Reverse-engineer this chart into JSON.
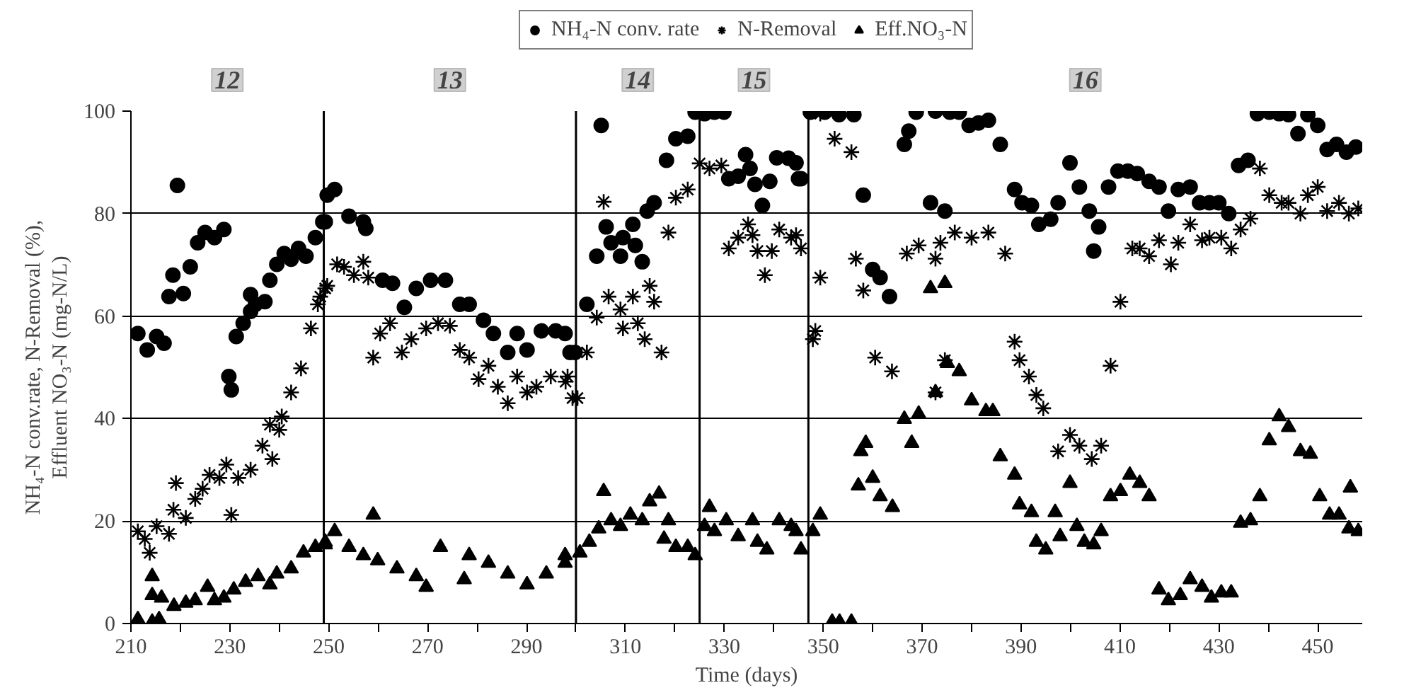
{
  "chart_data": {
    "type": "scatter",
    "xlabel": "Time (days)",
    "ylabel": "NH₄-N conv.rate, N-Removal (%),\nEffluent NO₃-N (mg-N/L)",
    "xlim": [
      210,
      459
    ],
    "ylim": [
      0,
      100
    ],
    "xticks": [
      210,
      {
        "value": 220,
        "label": null
      },
      230,
      {
        "value": 240,
        "label": null
      },
      250,
      {
        "value": 260,
        "label": null
      },
      270,
      {
        "value": 280,
        "label": null
      },
      290,
      {
        "value": 300,
        "label": null
      },
      310,
      {
        "value": 320,
        "label": null
      },
      330,
      {
        "value": 340,
        "label": null
      },
      350,
      {
        "value": 360,
        "label": null
      },
      370,
      {
        "value": 380,
        "label": null
      },
      390,
      {
        "value": 400,
        "label": null
      },
      410,
      {
        "value": 420,
        "label": null
      },
      430,
      {
        "value": 440,
        "label": null
      },
      450
    ],
    "yticks": [
      0,
      20,
      40,
      60,
      80,
      100
    ],
    "grid": "y",
    "legend": "top",
    "ref_lines": [
      {
        "axis": "x",
        "value": 249,
        "color": "#000000"
      },
      {
        "axis": "x",
        "value": 300,
        "color": "#000000"
      },
      {
        "axis": "x",
        "value": 325,
        "color": "#000000"
      },
      {
        "axis": "x",
        "value": 347,
        "color": "#000000"
      }
    ],
    "annotations": [
      "12",
      "13",
      "14",
      "15",
      "16"
    ],
    "series": [
      {
        "name": "NH₄-N conv. rate",
        "color": "#000000",
        "marker": "circle",
        "x": [
          211.4,
          213.3,
          215.2,
          216.7,
          217.7,
          218.5,
          219.4,
          220.6,
          222,
          223.5,
          225,
          226.9,
          228.8,
          229.8,
          230.3,
          231.3,
          232.7,
          234.2,
          234.2,
          235.2,
          237.1,
          238.1,
          239.5,
          241,
          242.4,
          243.9,
          245.4,
          247.3,
          248.8,
          249.3,
          249.7,
          251.2,
          254.1,
          257,
          257.5,
          260.9,
          262.9,
          265.3,
          267.7,
          270.6,
          273.6,
          276.5,
          278.4,
          281.3,
          283.3,
          286.2,
          288.1,
          290.1,
          293,
          295.9,
          297.8,
          298.8,
          299.8,
          302.2,
          304.2,
          305.1,
          306.1,
          307.1,
          309,
          309.5,
          311.5,
          312,
          313.4,
          314.4,
          315.8,
          318.3,
          320.2,
          322.6,
          324.1,
          326,
          328,
          329.9,
          330.9,
          332.8,
          334.3,
          335.2,
          336.2,
          337.7,
          339.2,
          340.6,
          343,
          344.5,
          345,
          345.5,
          347.4,
          350.3,
          353.2,
          356.2,
          358.1,
          360,
          361.5,
          363.4,
          366.4,
          367.3,
          368.8,
          371.7,
          372.7,
          374.6,
          375.6,
          377.5,
          379.5,
          381.4,
          383.4,
          385.8,
          388.7,
          390.2,
          392.1,
          393.6,
          396,
          397.5,
          399.9,
          401.8,
          403.8,
          404.7,
          405.7,
          407.7,
          409.6,
          411.6,
          413.5,
          415.9,
          417.9,
          419.8,
          421.8,
          424.2,
          426.1,
          428.1,
          430,
          432,
          434,
          435.9,
          437.8,
          440.2,
          442.2,
          444.1,
          446,
          448,
          450,
          451.9,
          453.8,
          455.8,
          457.7
        ],
        "values": [
          56.6,
          53.4,
          56,
          54.7,
          63.8,
          68,
          85.5,
          64.4,
          69.6,
          74.3,
          76.3,
          75.3,
          76.9,
          48.2,
          45.6,
          56,
          58.6,
          60.9,
          64.2,
          62.3,
          62.8,
          67,
          70.1,
          72.2,
          71.1,
          73.2,
          71.7,
          75.3,
          78.4,
          78.4,
          83.6,
          84.7,
          79.5,
          78.4,
          77.1,
          67,
          66.4,
          61.7,
          65.4,
          67,
          67,
          62.3,
          62.3,
          59.2,
          56.6,
          52.9,
          56.6,
          53.4,
          57.1,
          57.1,
          56.6,
          52.9,
          52.9,
          62.3,
          71.7,
          97.2,
          77.4,
          74.3,
          71.7,
          75.3,
          77.9,
          73.8,
          70.6,
          80.5,
          82.1,
          90.4,
          94.6,
          95.1,
          99.8,
          99.5,
          99.8,
          99.8,
          86.8,
          87.3,
          91.5,
          88.8,
          85.7,
          81.6,
          86.3,
          90.9,
          90.8,
          89.9,
          86.8,
          86.8,
          99.8,
          99.8,
          99.3,
          99.3,
          83.6,
          69.1,
          67.5,
          63.8,
          93.5,
          96.1,
          99.8,
          82.1,
          100,
          80.5,
          99.8,
          99.8,
          97.2,
          97.7,
          98.2,
          93.5,
          84.7,
          82.1,
          81.6,
          77.9,
          78.9,
          82.1,
          89.9,
          85.2,
          80.5,
          72.7,
          77.4,
          85.2,
          88.3,
          88.3,
          87.8,
          86.3,
          85.2,
          80.5,
          84.7,
          85.2,
          82.1,
          82.1,
          82.1,
          80,
          89.4,
          90.4,
          99.5,
          99.8,
          99.5,
          99.3,
          95.6,
          99.3,
          97.2,
          92.5,
          93.5,
          92,
          93
        ]
      },
      {
        "name": "N-Removal",
        "color": "#000000",
        "marker": "cross",
        "x": [
          211.4,
          212.8,
          213.8,
          215.2,
          217.7,
          218.6,
          219.1,
          221.1,
          223,
          224.5,
          225.9,
          227.9,
          229.3,
          230.3,
          231.7,
          234.2,
          236.6,
          238.1,
          238.6,
          240,
          240.5,
          242.4,
          244.4,
          246.4,
          247.8,
          248.3,
          249.3,
          249.7,
          251.7,
          253.1,
          255.1,
          257,
          258,
          259,
          260.4,
          262.4,
          264.8,
          266.7,
          269.7,
          272.1,
          274.5,
          276.5,
          278.4,
          280.3,
          282.3,
          284.2,
          286.2,
          288.1,
          290.1,
          292,
          294.9,
          297.9,
          298.3,
          299.3,
          300.3,
          302.2,
          304.2,
          305.6,
          306.6,
          309,
          309.5,
          311.5,
          312.5,
          313.9,
          314.9,
          315.8,
          317.3,
          318.7,
          320.2,
          322.6,
          325,
          327,
          329.4,
          330.9,
          332.8,
          334.8,
          335.7,
          336.7,
          338.2,
          339.6,
          341.1,
          343.5,
          344.5,
          345.5,
          347.9,
          348.4,
          349.4,
          349.4,
          352.3,
          355.7,
          356.6,
          358.1,
          360.5,
          363.9,
          366.9,
          369.3,
          372.7,
          372.7,
          373.7,
          374.6,
          376.6,
          380,
          383.4,
          386.8,
          388.7,
          389.7,
          391.6,
          393.1,
          394.5,
          397.5,
          399.9,
          401.8,
          404.3,
          406.2,
          408.1,
          410.1,
          412.5,
          414,
          415.9,
          417.9,
          420.3,
          421.8,
          424.2,
          426.6,
          428.1,
          430.5,
          432.5,
          434.4,
          436.4,
          438.3,
          440.2,
          442.7,
          444.1,
          446.5,
          448,
          450,
          451.9,
          454.3,
          456.3,
          458.2
        ],
        "values": [
          18,
          16.5,
          13.8,
          19,
          17.5,
          22.2,
          27.4,
          20.6,
          24.3,
          26.3,
          29,
          28.4,
          31,
          21.2,
          28.4,
          30,
          34.7,
          38.8,
          32.1,
          37.8,
          40.4,
          45.1,
          49.8,
          57.6,
          62.3,
          63.8,
          65.4,
          65.9,
          70.1,
          69.6,
          68,
          70.6,
          67.5,
          51.9,
          56.6,
          58.6,
          52.9,
          55.5,
          57.6,
          58.6,
          58.1,
          53.4,
          51.9,
          47.7,
          50.3,
          46.2,
          43,
          48.2,
          45.1,
          46.2,
          48.2,
          47.2,
          48.2,
          44,
          44,
          52.9,
          59.7,
          82.3,
          63.8,
          61.3,
          57.6,
          63.8,
          58.6,
          55.5,
          65.9,
          62.8,
          52.9,
          76.3,
          83.1,
          84.7,
          89.8,
          88.8,
          89.4,
          73.2,
          75.3,
          77.9,
          75.8,
          72.7,
          68,
          72.7,
          76.9,
          75.3,
          75.8,
          73.2,
          55.5,
          57.1,
          67.5,
          99.5,
          94.6,
          92,
          71.2,
          65,
          51.9,
          49.2,
          72.2,
          73.8,
          71.2,
          45.1,
          74.3,
          51.4,
          76.3,
          75.3,
          76.3,
          72.2,
          55,
          51.4,
          48.2,
          44.6,
          42,
          33.6,
          36.8,
          34.7,
          32.1,
          34.7,
          50.3,
          62.8,
          73.2,
          73.2,
          71.7,
          74.8,
          70.1,
          74.3,
          77.9,
          74.8,
          75.3,
          75.3,
          73.2,
          76.9,
          79,
          88.8,
          83.6,
          82.1,
          82.1,
          80,
          83.6,
          85.2,
          80.5,
          82.1,
          80,
          81
        ]
      },
      {
        "name": "Eff.NO₃-N",
        "color": "#000000",
        "marker": "triangle",
        "x": [
          211.4,
          214.3,
          214.3,
          214.3,
          215.7,
          216.2,
          218.7,
          221.1,
          223,
          225.5,
          226.9,
          228.8,
          230.8,
          233.2,
          235.7,
          238.1,
          239.5,
          242.4,
          244.9,
          247.3,
          249.3,
          249.3,
          251.2,
          254.1,
          257,
          259,
          259.9,
          263.8,
          267.7,
          269.7,
          272.6,
          277.4,
          278.4,
          282.3,
          286.2,
          290.1,
          294,
          297.8,
          297.8,
          300.8,
          302.7,
          304.6,
          305.6,
          307.1,
          309,
          311,
          313.4,
          314.9,
          316.8,
          317.8,
          318.7,
          320.2,
          322.6,
          324.1,
          326,
          327,
          328,
          330.4,
          332.8,
          335.7,
          336.7,
          338.6,
          341.1,
          343.5,
          344.5,
          345.5,
          347.9,
          349.4,
          351.8,
          353.3,
          355.7,
          357.1,
          357.6,
          358.6,
          360,
          361.5,
          364,
          366.4,
          367.9,
          369.3,
          371.7,
          372.7,
          374.6,
          375.1,
          377.5,
          380,
          382.9,
          384.3,
          385.8,
          388.7,
          389.7,
          392.1,
          393.1,
          395,
          396.9,
          397.9,
          399.9,
          401.3,
          402.8,
          404.7,
          406.2,
          408.1,
          410.1,
          412,
          414,
          415.9,
          417.9,
          419.8,
          422.2,
          424.2,
          426.6,
          428.5,
          430.5,
          432.5,
          434.4,
          436.4,
          438.3,
          440.2,
          442.2,
          444.1,
          446.5,
          448.5,
          450.4,
          452.4,
          454.3,
          456.3,
          456.6,
          458.2
        ],
        "values": [
          0.8,
          0.3,
          9.2,
          5.5,
          0.8,
          5,
          3.4,
          4,
          4.5,
          7.1,
          4.5,
          5,
          6.6,
          8.1,
          9.2,
          7.6,
          9.7,
          10.7,
          13.8,
          14.9,
          15.4,
          15.9,
          18,
          14.9,
          13.3,
          21.2,
          12.3,
          10.7,
          9.2,
          7.1,
          14.9,
          8.6,
          13.3,
          11.8,
          9.7,
          7.6,
          9.7,
          13.3,
          11.8,
          13.8,
          15.9,
          18.5,
          25.8,
          20.1,
          19,
          21.2,
          20.1,
          23.8,
          25.3,
          16.5,
          20.1,
          14.9,
          14.9,
          13.3,
          19,
          22.7,
          18,
          20.1,
          17,
          20.1,
          15.9,
          14.4,
          20.1,
          19,
          18,
          14.4,
          18,
          21.2,
          0.3,
          0.3,
          0.3,
          26.9,
          33.6,
          35.2,
          28.4,
          24.8,
          22.7,
          39.9,
          35.2,
          40.9,
          65.4,
          45.1,
          66.4,
          50.8,
          49.2,
          43.5,
          41.4,
          41.4,
          32.6,
          29,
          23.2,
          21.7,
          15.9,
          14.4,
          21.7,
          17,
          27.4,
          19,
          15.9,
          15.4,
          18,
          24.8,
          25.8,
          29,
          27.4,
          24.8,
          6.6,
          4.5,
          5.5,
          8.6,
          7.1,
          5,
          6,
          6,
          19.6,
          20.1,
          24.8,
          35.7,
          40.4,
          38.3,
          33.6,
          33.1,
          24.8,
          21.2,
          21.2,
          18.5,
          26.5,
          18
        ]
      }
    ]
  }
}
